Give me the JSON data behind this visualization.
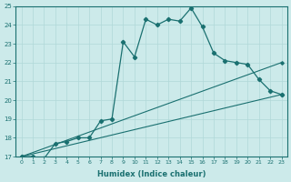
{
  "xlabel": "Humidex (Indice chaleur)",
  "background_color": "#cceaea",
  "line_color": "#1a7070",
  "grid_color": "#b0d8d8",
  "xlim": [
    -0.5,
    23.5
  ],
  "ylim": [
    17,
    25
  ],
  "yticks": [
    17,
    18,
    19,
    20,
    21,
    22,
    23,
    24,
    25
  ],
  "xticks": [
    0,
    1,
    2,
    3,
    4,
    5,
    6,
    7,
    8,
    9,
    10,
    11,
    12,
    13,
    14,
    15,
    16,
    17,
    18,
    19,
    20,
    21,
    22,
    23
  ],
  "series1_x": [
    0,
    1,
    2,
    3,
    4,
    5,
    6,
    7,
    8,
    9,
    10,
    11,
    12,
    13,
    14,
    15,
    16,
    17,
    18,
    19,
    20,
    21,
    22,
    23
  ],
  "series1_y": [
    17.0,
    17.0,
    16.9,
    17.7,
    17.8,
    18.0,
    18.0,
    18.9,
    19.0,
    23.1,
    22.3,
    24.3,
    24.0,
    24.3,
    24.2,
    24.9,
    23.9,
    22.5,
    22.1,
    22.0,
    21.9,
    21.1,
    20.5,
    20.3
  ],
  "series2_x": [
    0,
    23
  ],
  "series2_y": [
    17.0,
    22.0
  ],
  "series3_x": [
    0,
    23
  ],
  "series3_y": [
    17.0,
    20.3
  ]
}
